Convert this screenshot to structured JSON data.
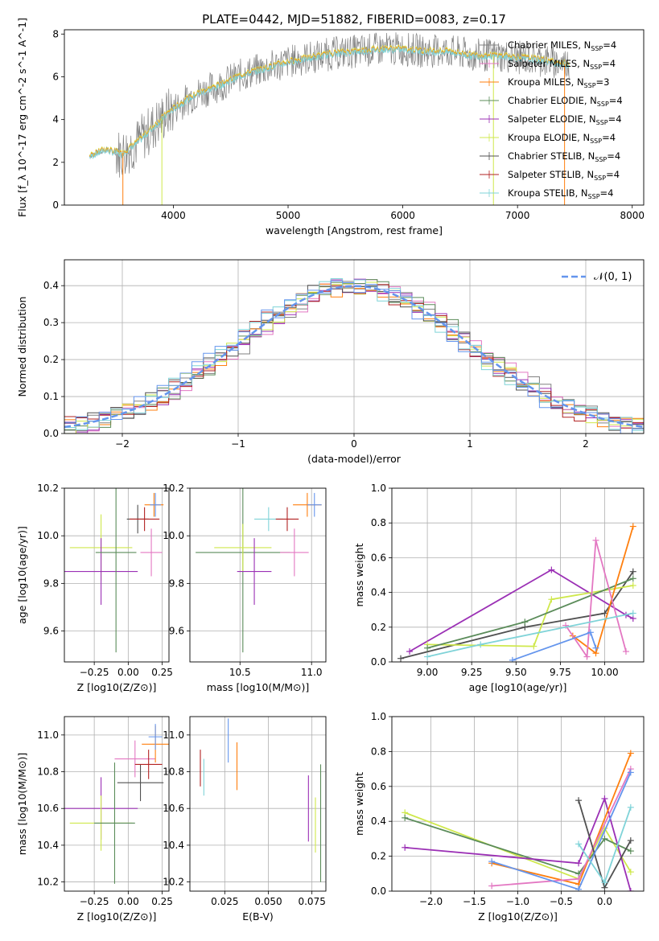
{
  "figure_title": "PLATE=0442, MJD=51882, FIBERID=0083, z=0.17",
  "colors": {
    "chabrier_miles": "#808080",
    "salpeter_miles": "#e377c2",
    "kroupa_miles": "#ff7f0e",
    "chabrier_elodie": "#5b8c5a",
    "salpeter_elodie": "#9b30b5",
    "kroupa_elodie": "#cfe84c",
    "chabrier_stelib": "#505050",
    "salpeter_stelib": "#b22222",
    "kroupa_stelib": "#7fd3d8",
    "extra_blue": "#6495ed",
    "gaussian": "#6495ed"
  },
  "chart_data": [
    {
      "type": "line",
      "panel": "spectrum",
      "xlabel": "wavelength [Angstrom, rest frame]",
      "ylabel": "Flux [f_λ 10^-17 erg cm^-2 s^-1 A^-1]",
      "xlim": [
        3050,
        8100
      ],
      "ylim": [
        0,
        8.2
      ],
      "xticks": [
        "4000",
        "5000",
        "6000",
        "7000",
        "8000"
      ],
      "yticks": [
        "0",
        "2",
        "4",
        "6",
        "8"
      ],
      "legend_position": "right",
      "legend": [
        {
          "label": "Chabrier MILES, N_SSP=4",
          "color_key": "chabrier_miles"
        },
        {
          "label": "Salpeter MILES, N_SSP=4",
          "color_key": "salpeter_miles"
        },
        {
          "label": "Kroupa MILES, N_SSP=3",
          "color_key": "kroupa_miles"
        },
        {
          "label": "Chabrier ELODIE, N_SSP=4",
          "color_key": "chabrier_elodie"
        },
        {
          "label": "Salpeter ELODIE, N_SSP=4",
          "color_key": "salpeter_elodie"
        },
        {
          "label": "Kroupa ELODIE, N_SSP=4",
          "color_key": "kroupa_elodie"
        },
        {
          "label": "Chabrier STELIB, N_SSP=4",
          "color_key": "chabrier_stelib"
        },
        {
          "label": "Salpeter STELIB, N_SSP=4",
          "color_key": "salpeter_stelib"
        },
        {
          "label": "Kroupa STELIB, N_SSP=4",
          "color_key": "kroupa_stelib"
        }
      ],
      "continuum": {
        "x": [
          3270,
          3400,
          3550,
          3700,
          3850,
          3950,
          4050,
          4200,
          4400,
          4600,
          4800,
          5000,
          5200,
          5400,
          5600,
          5800,
          6000,
          6200,
          6400,
          6600,
          6800,
          7000,
          7200,
          7400
        ],
        "y": [
          2.3,
          2.6,
          2.4,
          3.0,
          3.8,
          4.3,
          4.7,
          5.2,
          5.6,
          6.1,
          6.4,
          6.7,
          6.9,
          7.1,
          7.2,
          7.3,
          7.3,
          7.2,
          7.2,
          7.0,
          7.0,
          6.9,
          6.8,
          6.6
        ]
      }
    },
    {
      "type": "line",
      "panel": "residual_histogram",
      "xlabel": "(data-model)/error",
      "ylabel": "Normed distribution",
      "xlim": [
        -2.5,
        2.5
      ],
      "ylim": [
        0,
        0.47
      ],
      "xticks": [
        "−2",
        "−1",
        "0",
        "1",
        "2"
      ],
      "yticks": [
        "0.0",
        "0.1",
        "0.2",
        "0.3",
        "0.4"
      ],
      "grid": true,
      "legend_position": "top-right",
      "legend_label": "𝒩(0, 1)"
    },
    {
      "type": "scatter",
      "panel": "age_vs_Z",
      "xlabel": "Z [log10(Z/Z⊙)]",
      "ylabel": "age [log10(age/yr)]",
      "xlim": [
        -0.47,
        0.3
      ],
      "ylim": [
        9.47,
        10.2
      ],
      "xticks": [
        "−0.25",
        "0.00",
        "0.25"
      ],
      "yticks": [
        "9.6",
        "9.8",
        "10.0",
        "10.2"
      ],
      "grid": true,
      "points": [
        {
          "c": "kroupa_elodie",
          "x": -0.2,
          "y": 9.95,
          "xe": 0.23,
          "ye": 0.14
        },
        {
          "c": "salpeter_elodie",
          "x": -0.2,
          "y": 9.85,
          "xe": 0.27,
          "ye": 0.14
        },
        {
          "c": "chabrier_elodie",
          "x": -0.09,
          "y": 9.93,
          "xe": 0.15,
          "ye": 0.42
        },
        {
          "c": "chabrier_stelib",
          "x": 0.07,
          "y": 10.07,
          "xe": 0.08,
          "ye": 0.06
        },
        {
          "c": "salpeter_stelib",
          "x": 0.12,
          "y": 10.07,
          "xe": 0.11,
          "ye": 0.05
        },
        {
          "c": "salpeter_miles",
          "x": 0.17,
          "y": 9.93,
          "xe": 0.08,
          "ye": 0.1
        },
        {
          "c": "kroupa_miles",
          "x": 0.19,
          "y": 10.13,
          "xe": 0.07,
          "ye": 0.05
        },
        {
          "c": "extra_blue",
          "x": 0.2,
          "y": 10.13,
          "xe": 0.04,
          "ye": 0.05
        }
      ]
    },
    {
      "type": "scatter",
      "panel": "age_vs_mass",
      "xlabel": "mass [log10(M/M⊙)]",
      "ylabel": "",
      "xlim": [
        10.15,
        11.1
      ],
      "ylim": [
        9.47,
        10.2
      ],
      "xticks": [
        "10.5",
        "11.0"
      ],
      "yticks": [
        "9.6",
        "9.8",
        "10.0",
        "10.2"
      ],
      "grid": true,
      "points": [
        {
          "c": "chabrier_elodie",
          "x": 10.52,
          "y": 9.93,
          "xe": 0.33,
          "ye": 0.42
        },
        {
          "c": "kroupa_elodie",
          "x": 10.52,
          "y": 9.95,
          "xe": 0.2,
          "ye": 0.1
        },
        {
          "c": "salpeter_elodie",
          "x": 10.6,
          "y": 9.85,
          "xe": 0.12,
          "ye": 0.14
        },
        {
          "c": "kroupa_stelib",
          "x": 10.7,
          "y": 10.07,
          "xe": 0.1,
          "ye": 0.05
        },
        {
          "c": "salpeter_miles",
          "x": 10.88,
          "y": 9.93,
          "xe": 0.1,
          "ye": 0.1
        },
        {
          "c": "salpeter_stelib",
          "x": 10.83,
          "y": 10.07,
          "xe": 0.08,
          "ye": 0.05
        },
        {
          "c": "kroupa_miles",
          "x": 10.97,
          "y": 10.13,
          "xe": 0.1,
          "ye": 0.05
        },
        {
          "c": "extra_blue",
          "x": 11.02,
          "y": 10.13,
          "xe": 0.05,
          "ye": 0.05
        }
      ]
    },
    {
      "type": "line",
      "panel": "mass_weight_vs_age",
      "xlabel": "age [log10(age/yr)]",
      "ylabel": "mass weight",
      "xlim": [
        8.8,
        10.22
      ],
      "ylim": [
        0,
        1.0
      ],
      "xticks": [
        "9.00",
        "9.25",
        "9.50",
        "9.75",
        "10.00"
      ],
      "yticks": [
        "0.0",
        "0.2",
        "0.4",
        "0.6",
        "0.8",
        "1.0"
      ],
      "grid": true,
      "series": [
        {
          "c": "chabrier_stelib",
          "x": [
            8.85,
            9.55,
            10.0,
            10.16
          ],
          "y": [
            0.02,
            0.2,
            0.28,
            0.52
          ]
        },
        {
          "c": "salpeter_elodie",
          "x": [
            8.9,
            9.7,
            10.12,
            10.16
          ],
          "y": [
            0.06,
            0.53,
            0.27,
            0.25
          ]
        },
        {
          "c": "kroupa_elodie",
          "x": [
            9.0,
            9.6,
            9.7,
            10.16
          ],
          "y": [
            0.1,
            0.09,
            0.36,
            0.44
          ]
        },
        {
          "c": "chabrier_elodie",
          "x": [
            9.0,
            9.55,
            10.16
          ],
          "y": [
            0.08,
            0.23,
            0.48
          ]
        },
        {
          "c": "kroupa_miles",
          "x": [
            9.82,
            9.95,
            10.16
          ],
          "y": [
            0.15,
            0.05,
            0.78
          ]
        },
        {
          "c": "salpeter_miles",
          "x": [
            9.78,
            9.9,
            9.95,
            10.12
          ],
          "y": [
            0.21,
            0.03,
            0.7,
            0.06
          ]
        },
        {
          "c": "extra_blue",
          "x": [
            9.48,
            9.92,
            9.95
          ],
          "y": [
            0.01,
            0.17,
            0.08
          ]
        },
        {
          "c": "kroupa_stelib",
          "x": [
            9.0,
            9.3,
            10.16
          ],
          "y": [
            0.03,
            0.1,
            0.28
          ]
        }
      ]
    },
    {
      "type": "scatter",
      "panel": "mass_vs_Z",
      "xlabel": "Z [log10(Z/Z⊙)]",
      "ylabel": "mass [log10(M/M⊙)]",
      "xlim": [
        -0.47,
        0.3
      ],
      "ylim": [
        10.15,
        11.1
      ],
      "xticks": [
        "−0.25",
        "0.00",
        "0.25"
      ],
      "yticks": [
        "10.2",
        "10.4",
        "10.6",
        "10.8",
        "11.0"
      ],
      "grid": true,
      "points": [
        {
          "c": "salpeter_elodie",
          "x": -0.2,
          "y": 10.6,
          "xe": 0.27,
          "ye": 0.17
        },
        {
          "c": "kroupa_elodie",
          "x": -0.2,
          "y": 10.52,
          "xe": 0.23,
          "ye": 0.15
        },
        {
          "c": "chabrier_elodie",
          "x": -0.1,
          "y": 10.52,
          "xe": 0.15,
          "ye": 0.33
        },
        {
          "c": "chabrier_stelib",
          "x": 0.09,
          "y": 10.74,
          "xe": 0.17,
          "ye": 0.1
        },
        {
          "c": "salpeter_miles",
          "x": 0.05,
          "y": 10.87,
          "xe": 0.15,
          "ye": 0.1
        },
        {
          "c": "salpeter_stelib",
          "x": 0.15,
          "y": 10.84,
          "xe": 0.1,
          "ye": 0.08
        },
        {
          "c": "kroupa_miles",
          "x": 0.2,
          "y": 10.95,
          "xe": 0.1,
          "ye": 0.1
        },
        {
          "c": "extra_blue",
          "x": 0.2,
          "y": 10.99,
          "xe": 0.05,
          "ye": 0.07
        }
      ]
    },
    {
      "type": "scatter",
      "panel": "mass_vs_ebv",
      "xlabel": "E(B-V)",
      "ylabel": "",
      "xlim": [
        0.005,
        0.083
      ],
      "ylim": [
        10.15,
        11.1
      ],
      "xticks": [
        "0.025",
        "0.050",
        "0.075"
      ],
      "yticks": [
        "10.2",
        "10.4",
        "10.6",
        "10.8",
        "11.0"
      ],
      "grid": true,
      "points": [
        {
          "c": "salpeter_stelib",
          "x": 0.011,
          "y": 10.82,
          "xe": 0,
          "ye": 0.1
        },
        {
          "c": "kroupa_stelib",
          "x": 0.013,
          "y": 10.77,
          "xe": 0,
          "ye": 0.1
        },
        {
          "c": "extra_blue",
          "x": 0.027,
          "y": 10.97,
          "xe": 0,
          "ye": 0.12
        },
        {
          "c": "kroupa_miles",
          "x": 0.032,
          "y": 10.83,
          "xe": 0,
          "ye": 0.13
        },
        {
          "c": "salpeter_elodie",
          "x": 0.073,
          "y": 10.6,
          "xe": 0,
          "ye": 0.18
        },
        {
          "c": "kroupa_elodie",
          "x": 0.077,
          "y": 10.51,
          "xe": 0,
          "ye": 0.15
        },
        {
          "c": "chabrier_elodie",
          "x": 0.08,
          "y": 10.52,
          "xe": 0,
          "ye": 0.32
        }
      ]
    },
    {
      "type": "line",
      "panel": "mass_weight_vs_Z",
      "xlabel": "Z [log10(Z/Z⊙)]",
      "ylabel": "mass weight",
      "xlim": [
        -2.45,
        0.45
      ],
      "ylim": [
        0,
        1.0
      ],
      "xticks": [
        "−2.0",
        "−1.5",
        "−1.0",
        "−0.5",
        "0.0"
      ],
      "yticks": [
        "0.0",
        "0.2",
        "0.4",
        "0.6",
        "0.8",
        "1.0"
      ],
      "grid": true,
      "series": [
        {
          "c": "kroupa_elodie",
          "x": [
            -2.3,
            -0.3,
            0.0,
            0.3
          ],
          "y": [
            0.45,
            0.07,
            0.36,
            0.11
          ]
        },
        {
          "c": "chabrier_elodie",
          "x": [
            -2.3,
            -0.3,
            0.0,
            0.3
          ],
          "y": [
            0.42,
            0.1,
            0.3,
            0.23
          ]
        },
        {
          "c": "salpeter_elodie",
          "x": [
            -2.3,
            -0.3,
            0.0,
            0.3
          ],
          "y": [
            0.25,
            0.16,
            0.53,
            0.0
          ]
        },
        {
          "c": "kroupa_miles",
          "x": [
            -1.3,
            -0.3,
            0.3
          ],
          "y": [
            0.16,
            0.04,
            0.79
          ]
        },
        {
          "c": "salpeter_miles",
          "x": [
            -1.3,
            -0.3,
            0.3
          ],
          "y": [
            0.03,
            0.07,
            0.7
          ]
        },
        {
          "c": "chabrier_stelib",
          "x": [
            -0.3,
            0.0,
            0.3
          ],
          "y": [
            0.52,
            0.02,
            0.29
          ]
        },
        {
          "c": "extra_blue",
          "x": [
            -1.3,
            -0.3,
            0.3
          ],
          "y": [
            0.17,
            0.01,
            0.68
          ]
        },
        {
          "c": "kroupa_stelib",
          "x": [
            -0.3,
            0.0,
            0.3
          ],
          "y": [
            0.27,
            0.05,
            0.48
          ]
        }
      ]
    }
  ]
}
